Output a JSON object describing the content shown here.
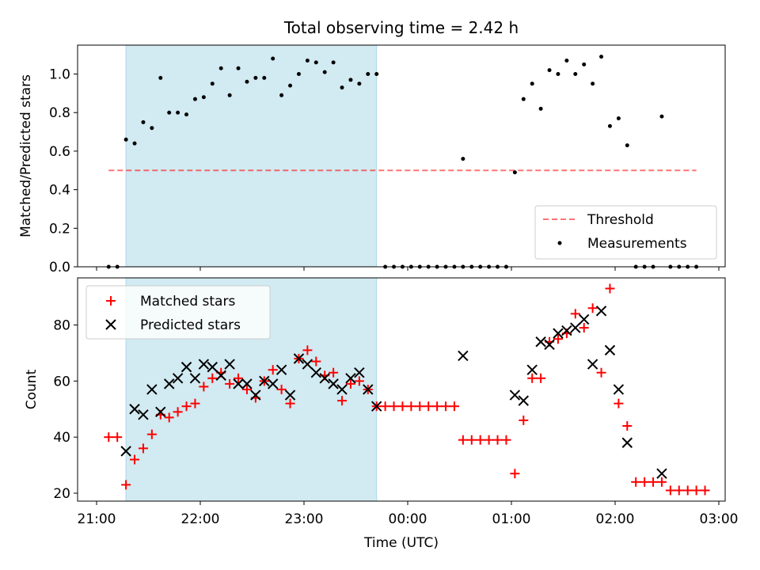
{
  "figure_title": "Total observing time = 2.42 h",
  "colors": {
    "shade": "#add8e6",
    "threshold": "#ff0000",
    "measurement": "#000000",
    "matched": "#ff0000",
    "predicted": "#000000"
  },
  "chart_data": [
    {
      "type": "scatter",
      "panel": "top",
      "title": "Total observing time = 2.42 h",
      "xlabel": "",
      "ylabel": "Matched/Predicted stars",
      "xlim": [
        "21:00",
        "03:00"
      ],
      "ylim": [
        0,
        1.15
      ],
      "yticks": [
        0.0,
        0.2,
        0.4,
        0.6,
        0.8,
        1.0
      ],
      "ytick_labels": [
        "0.0",
        "0.2",
        "0.4",
        "0.6",
        "0.8",
        "1.0"
      ],
      "shaded_span": [
        "21:17",
        "23:42"
      ],
      "threshold": {
        "name": "Threshold",
        "y": 0.5,
        "x_range": [
          "21:07",
          "02:47"
        ]
      },
      "legend": {
        "position": "lower-right",
        "entries": [
          "Threshold",
          "Measurements"
        ]
      },
      "series": [
        {
          "name": "Measurements",
          "points": [
            [
              "21:07",
              0
            ],
            [
              "21:12",
              0
            ],
            [
              "21:17",
              0.66
            ],
            [
              "21:22",
              0.64
            ],
            [
              "21:27",
              0.75
            ],
            [
              "21:32",
              0.72
            ],
            [
              "21:37",
              0.98
            ],
            [
              "21:42",
              0.8
            ],
            [
              "21:47",
              0.8
            ],
            [
              "21:52",
              0.79
            ],
            [
              "21:57",
              0.87
            ],
            [
              "22:02",
              0.88
            ],
            [
              "22:07",
              0.95
            ],
            [
              "22:12",
              1.03
            ],
            [
              "22:17",
              0.89
            ],
            [
              "22:22",
              1.03
            ],
            [
              "22:27",
              0.96
            ],
            [
              "22:32",
              0.98
            ],
            [
              "22:37",
              0.98
            ],
            [
              "22:42",
              1.08
            ],
            [
              "22:47",
              0.89
            ],
            [
              "22:52",
              0.94
            ],
            [
              "22:57",
              1.0
            ],
            [
              "23:02",
              1.07
            ],
            [
              "23:07",
              1.06
            ],
            [
              "23:12",
              1.01
            ],
            [
              "23:17",
              1.06
            ],
            [
              "23:22",
              0.93
            ],
            [
              "23:27",
              0.97
            ],
            [
              "23:32",
              0.95
            ],
            [
              "23:37",
              1.0
            ],
            [
              "23:42",
              1.0
            ],
            [
              "23:47",
              0
            ],
            [
              "23:52",
              0
            ],
            [
              "23:57",
              0
            ],
            [
              "00:02",
              0
            ],
            [
              "00:07",
              0
            ],
            [
              "00:12",
              0
            ],
            [
              "00:17",
              0
            ],
            [
              "00:22",
              0
            ],
            [
              "00:27",
              0
            ],
            [
              "00:32",
              0
            ],
            [
              "00:32",
              0.56
            ],
            [
              "00:37",
              0
            ],
            [
              "00:42",
              0
            ],
            [
              "00:47",
              0
            ],
            [
              "00:52",
              0
            ],
            [
              "00:57",
              0
            ],
            [
              "01:02",
              0.49
            ],
            [
              "01:07",
              0.87
            ],
            [
              "01:12",
              0.95
            ],
            [
              "01:17",
              0.82
            ],
            [
              "01:22",
              1.02
            ],
            [
              "01:27",
              1.0
            ],
            [
              "01:32",
              1.07
            ],
            [
              "01:37",
              1.0
            ],
            [
              "01:42",
              1.05
            ],
            [
              "01:47",
              0.95
            ],
            [
              "01:52",
              1.09
            ],
            [
              "01:57",
              0.73
            ],
            [
              "02:02",
              0.77
            ],
            [
              "02:07",
              0.63
            ],
            [
              "02:12",
              0
            ],
            [
              "02:17",
              0
            ],
            [
              "02:22",
              0
            ],
            [
              "02:27",
              0.78
            ],
            [
              "02:32",
              0
            ],
            [
              "02:37",
              0
            ],
            [
              "02:42",
              0
            ],
            [
              "02:47",
              0
            ]
          ]
        }
      ]
    },
    {
      "type": "scatter",
      "panel": "bottom",
      "title": "",
      "xlabel": "Time (UTC)",
      "ylabel": "Count",
      "xlim": [
        "21:00",
        "03:00"
      ],
      "ylim": [
        18,
        96
      ],
      "yticks": [
        20,
        40,
        60,
        80
      ],
      "ytick_labels": [
        "20",
        "40",
        "60",
        "80"
      ],
      "xtick_labels": [
        "21:00",
        "22:00",
        "23:00",
        "00:00",
        "01:00",
        "02:00",
        "03:00"
      ],
      "shaded_span": [
        "21:17",
        "23:42"
      ],
      "legend": {
        "position": "upper-left",
        "entries": [
          "Matched stars",
          "Predicted stars"
        ]
      },
      "series": [
        {
          "name": "Matched stars",
          "marker": "plus",
          "points": [
            [
              "21:07",
              40
            ],
            [
              "21:12",
              40
            ],
            [
              "21:17",
              23
            ],
            [
              "21:22",
              32
            ],
            [
              "21:27",
              36
            ],
            [
              "21:32",
              41
            ],
            [
              "21:37",
              48
            ],
            [
              "21:42",
              47
            ],
            [
              "21:47",
              49
            ],
            [
              "21:52",
              51
            ],
            [
              "21:57",
              52
            ],
            [
              "22:02",
              58
            ],
            [
              "22:07",
              61
            ],
            [
              "22:12",
              63
            ],
            [
              "22:17",
              59
            ],
            [
              "22:22",
              61
            ],
            [
              "22:27",
              57
            ],
            [
              "22:32",
              54
            ],
            [
              "22:37",
              60
            ],
            [
              "22:42",
              64
            ],
            [
              "22:47",
              57
            ],
            [
              "22:52",
              52
            ],
            [
              "22:57",
              68
            ],
            [
              "23:02",
              71
            ],
            [
              "23:07",
              67
            ],
            [
              "23:12",
              62
            ],
            [
              "23:17",
              63
            ],
            [
              "23:22",
              53
            ],
            [
              "23:27",
              59
            ],
            [
              "23:32",
              60
            ],
            [
              "23:37",
              57
            ],
            [
              "23:42",
              51
            ],
            [
              "23:47",
              51
            ],
            [
              "23:52",
              51
            ],
            [
              "23:57",
              51
            ],
            [
              "00:02",
              51
            ],
            [
              "00:07",
              51
            ],
            [
              "00:12",
              51
            ],
            [
              "00:17",
              51
            ],
            [
              "00:22",
              51
            ],
            [
              "00:27",
              51
            ],
            [
              "00:32",
              39
            ],
            [
              "00:37",
              39
            ],
            [
              "00:42",
              39
            ],
            [
              "00:47",
              39
            ],
            [
              "00:52",
              39
            ],
            [
              "00:57",
              39
            ],
            [
              "01:02",
              27
            ],
            [
              "01:07",
              46
            ],
            [
              "01:12",
              61
            ],
            [
              "01:17",
              61
            ],
            [
              "01:22",
              74
            ],
            [
              "01:27",
              75
            ],
            [
              "01:32",
              77
            ],
            [
              "01:37",
              84
            ],
            [
              "01:42",
              79
            ],
            [
              "01:47",
              86
            ],
            [
              "01:52",
              63
            ],
            [
              "01:57",
              93
            ],
            [
              "02:02",
              52
            ],
            [
              "02:07",
              44
            ],
            [
              "02:12",
              24
            ],
            [
              "02:17",
              24
            ],
            [
              "02:22",
              24
            ],
            [
              "02:27",
              24
            ],
            [
              "02:32",
              21
            ],
            [
              "02:37",
              21
            ],
            [
              "02:42",
              21
            ],
            [
              "02:47",
              21
            ],
            [
              "02:52",
              21
            ]
          ]
        },
        {
          "name": "Predicted stars",
          "marker": "x",
          "points": [
            [
              "21:17",
              35
            ],
            [
              "21:22",
              50
            ],
            [
              "21:27",
              48
            ],
            [
              "21:32",
              57
            ],
            [
              "21:37",
              49
            ],
            [
              "21:42",
              59
            ],
            [
              "21:47",
              61
            ],
            [
              "21:52",
              65
            ],
            [
              "21:57",
              61
            ],
            [
              "22:02",
              66
            ],
            [
              "22:07",
              65
            ],
            [
              "22:12",
              62
            ],
            [
              "22:17",
              66
            ],
            [
              "22:22",
              59
            ],
            [
              "22:27",
              59
            ],
            [
              "22:32",
              55
            ],
            [
              "22:37",
              60
            ],
            [
              "22:42",
              59
            ],
            [
              "22:47",
              64
            ],
            [
              "22:52",
              55
            ],
            [
              "22:57",
              68
            ],
            [
              "23:02",
              66
            ],
            [
              "23:07",
              63
            ],
            [
              "23:12",
              61
            ],
            [
              "23:17",
              59
            ],
            [
              "23:22",
              57
            ],
            [
              "23:27",
              61
            ],
            [
              "23:32",
              63
            ],
            [
              "23:37",
              57
            ],
            [
              "23:42",
              51
            ],
            [
              "00:32",
              69
            ],
            [
              "01:02",
              55
            ],
            [
              "01:07",
              53
            ],
            [
              "01:12",
              64
            ],
            [
              "01:17",
              74
            ],
            [
              "01:22",
              73
            ],
            [
              "01:27",
              77
            ],
            [
              "01:32",
              78
            ],
            [
              "01:37",
              79
            ],
            [
              "01:42",
              82
            ],
            [
              "01:47",
              66
            ],
            [
              "01:52",
              85
            ],
            [
              "01:57",
              71
            ],
            [
              "02:02",
              57
            ],
            [
              "02:07",
              38
            ],
            [
              "02:27",
              27
            ]
          ]
        }
      ]
    }
  ]
}
